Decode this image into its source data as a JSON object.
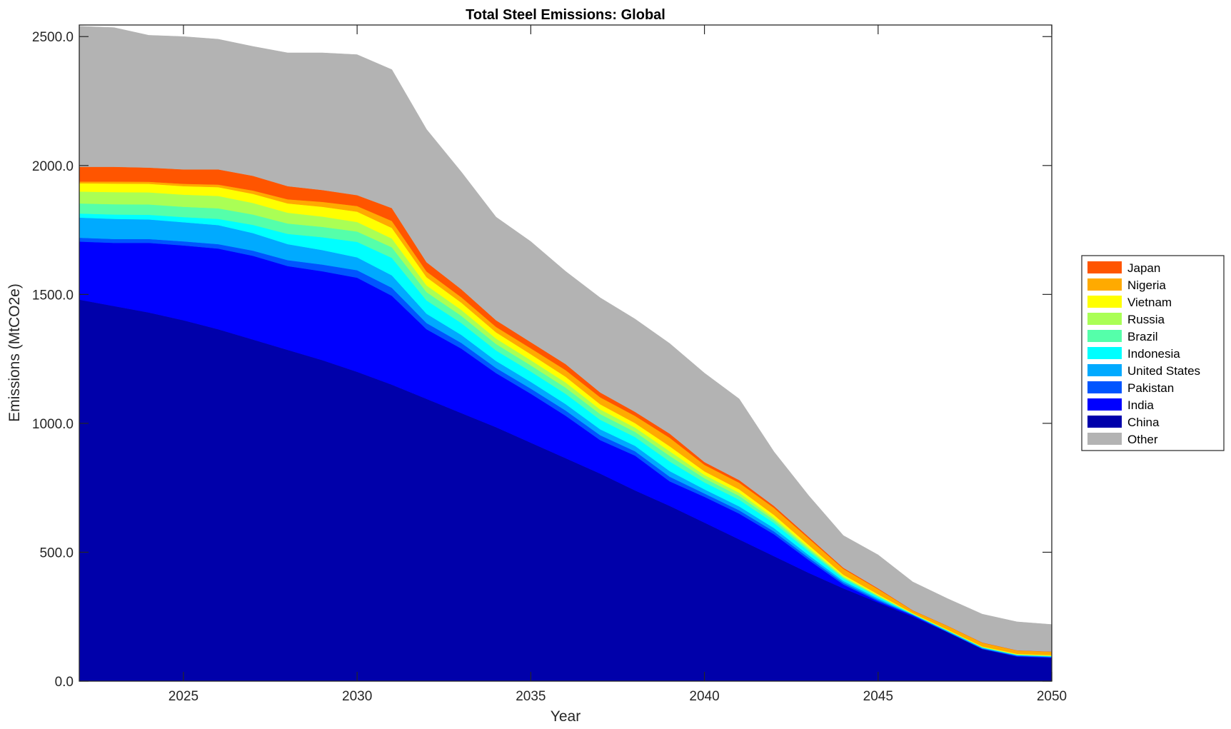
{
  "chart_data": {
    "type": "area",
    "stacked": true,
    "title": "Total Steel Emissions: Global",
    "xlabel": "Year",
    "ylabel": "Emissions (MtCO2e)",
    "xlim": [
      2022,
      2050
    ],
    "ylim": [
      0,
      2545
    ],
    "xticks": [
      2025,
      2030,
      2035,
      2040,
      2045,
      2050
    ],
    "xtick_labels": [
      "2025",
      "2030",
      "2035",
      "2040",
      "2045",
      "2050"
    ],
    "yticks": [
      0,
      500,
      1000,
      1500,
      2000,
      2500
    ],
    "ytick_labels": [
      "0.0",
      "500.0",
      "1000.0",
      "1500.0",
      "2000.0",
      "2500.0"
    ],
    "legend_position": "right-outside",
    "x": [
      2022,
      2023,
      2024,
      2025,
      2026,
      2027,
      2028,
      2029,
      2030,
      2031,
      2032,
      2033,
      2034,
      2035,
      2036,
      2037,
      2038,
      2039,
      2040,
      2041,
      2042,
      2043,
      2044,
      2045,
      2046,
      2047,
      2048,
      2049,
      2050
    ],
    "series": [
      {
        "name": "China",
        "color": "#0000AA",
        "values": [
          1480,
          1455,
          1430,
          1400,
          1365,
          1325,
          1285,
          1245,
          1200,
          1150,
          1095,
          1040,
          985,
          925,
          865,
          805,
          740,
          680,
          615,
          550,
          485,
          420,
          360,
          305,
          250,
          190,
          125,
          95,
          90
        ]
      },
      {
        "name": "India",
        "color": "#0000FF",
        "values": [
          225,
          245,
          270,
          290,
          313,
          325,
          325,
          345,
          365,
          345,
          270,
          250,
          210,
          190,
          165,
          130,
          135,
          95,
          100,
          100,
          85,
          50,
          15,
          5,
          5,
          0,
          0,
          2,
          2
        ]
      },
      {
        "name": "Pakistan",
        "color": "#0055FF",
        "values": [
          15,
          15,
          15,
          16,
          17,
          20,
          23,
          26,
          29,
          31,
          24,
          22,
          20,
          20,
          20,
          19,
          17,
          18,
          13,
          13,
          11,
          9,
          7,
          5,
          2,
          2,
          2,
          2,
          2
        ]
      },
      {
        "name": "United States",
        "color": "#00AAFF",
        "values": [
          78,
          78,
          76,
          74,
          74,
          68,
          62,
          56,
          50,
          48,
          36,
          31,
          27,
          26,
          25,
          23,
          21,
          22,
          16,
          15,
          13,
          10,
          7,
          6,
          2,
          3,
          3,
          2,
          2
        ]
      },
      {
        "name": "Indonesia",
        "color": "#00FFFF",
        "values": [
          16,
          17,
          18,
          20,
          24,
          32,
          40,
          50,
          60,
          68,
          52,
          46,
          41,
          40,
          40,
          37,
          34,
          37,
          27,
          26,
          20,
          15,
          9,
          6,
          1,
          1,
          1,
          1,
          1
        ]
      },
      {
        "name": "Brazil",
        "color": "#55FFAA",
        "values": [
          39,
          40,
          40,
          40,
          41,
          40,
          40,
          40,
          40,
          41,
          32,
          28,
          25,
          24,
          24,
          22,
          20,
          22,
          16,
          15,
          11,
          8,
          5,
          3,
          1,
          1,
          1,
          1,
          1
        ]
      },
      {
        "name": "Russia",
        "color": "#AAFF55",
        "values": [
          46,
          47,
          47,
          47,
          48,
          45,
          42,
          40,
          37,
          34,
          26,
          23,
          21,
          20,
          20,
          18,
          17,
          18,
          13,
          12,
          9,
          7,
          4,
          3,
          1,
          1,
          1,
          1,
          1
        ]
      },
      {
        "name": "Vietnam",
        "color": "#FFFF00",
        "values": [
          32,
          33,
          33,
          33,
          34,
          35,
          36,
          38,
          40,
          41,
          32,
          28,
          24,
          23,
          22,
          20,
          17,
          19,
          14,
          13,
          11,
          9,
          6,
          4,
          2,
          2,
          2,
          2,
          2
        ]
      },
      {
        "name": "Nigeria",
        "color": "#FFAA00",
        "values": [
          7,
          8,
          8,
          9,
          10,
          13,
          16,
          19,
          22,
          27,
          22,
          21,
          21,
          23,
          26,
          27,
          28,
          33,
          25,
          26,
          27,
          26,
          23,
          20,
          10,
          14,
          14,
          13,
          13
        ]
      },
      {
        "name": "Japan",
        "color": "#FF5500",
        "values": [
          57,
          57,
          55,
          56,
          59,
          57,
          51,
          46,
          42,
          50,
          36,
          31,
          26,
          24,
          23,
          19,
          16,
          16,
          11,
          10,
          8,
          6,
          4,
          3,
          1,
          1,
          1,
          1,
          1
        ]
      },
      {
        "name": "Other",
        "color": "#B3B3B3",
        "values": [
          545,
          540,
          513,
          515,
          505,
          502,
          517,
          532,
          545,
          537,
          515,
          455,
          400,
          390,
          360,
          367,
          360,
          350,
          345,
          315,
          210,
          160,
          125,
          130,
          110,
          105,
          110,
          110,
          105
        ]
      }
    ],
    "legend_order": [
      "Japan",
      "Nigeria",
      "Vietnam",
      "Russia",
      "Brazil",
      "Indonesia",
      "United States",
      "Pakistan",
      "India",
      "China",
      "Other"
    ]
  }
}
